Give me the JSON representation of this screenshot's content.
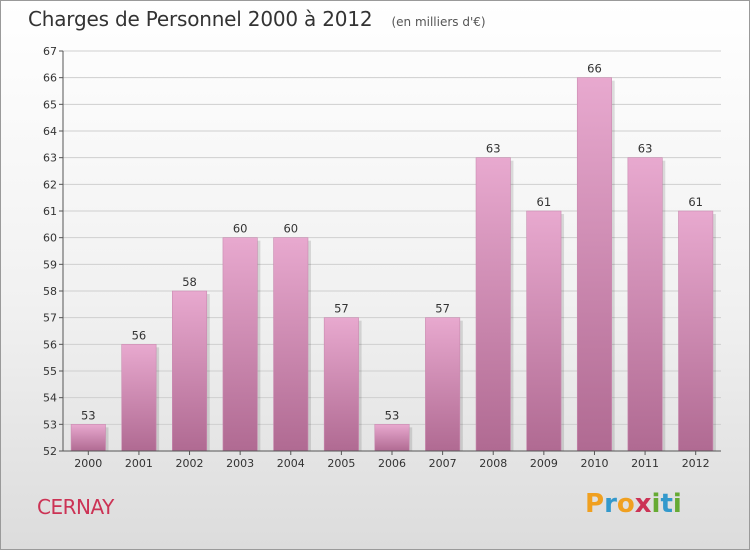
{
  "title": "Charges de Personnel 2000 à 2012",
  "subtitle": "(en milliers d'€)",
  "commune": "CERNAY",
  "logo": {
    "text": "Proxiti",
    "letters": [
      {
        "ch": "P",
        "color": "#f0a020"
      },
      {
        "ch": "r",
        "color": "#3399cc"
      },
      {
        "ch": "o",
        "color": "#f0a020"
      },
      {
        "ch": "x",
        "color": "#cc3355"
      },
      {
        "ch": "i",
        "color": "#66aa33"
      },
      {
        "ch": "t",
        "color": "#3399cc"
      },
      {
        "ch": "i",
        "color": "#66aa33"
      }
    ]
  },
  "colors": {
    "bar_light": "#e8a9cf",
    "bar_dark": "#b06a92",
    "grid": "#cfcfcf",
    "title": "#333333",
    "commune": "#cc3355"
  },
  "chart_data": {
    "type": "bar",
    "title": "Charges de Personnel 2000 à 2012",
    "subtitle": "(en milliers d'€)",
    "categories": [
      "2000",
      "2001",
      "2002",
      "2003",
      "2004",
      "2005",
      "2006",
      "2007",
      "2008",
      "2009",
      "2010",
      "2011",
      "2012"
    ],
    "values": [
      53,
      56,
      58,
      60,
      60,
      57,
      53,
      57,
      63,
      61,
      66,
      63,
      61
    ],
    "ylim": [
      52,
      67
    ],
    "yticks": [
      52,
      53,
      54,
      55,
      56,
      57,
      58,
      59,
      60,
      61,
      62,
      63,
      64,
      65,
      66,
      67
    ],
    "grid": true,
    "data_labels": true
  }
}
